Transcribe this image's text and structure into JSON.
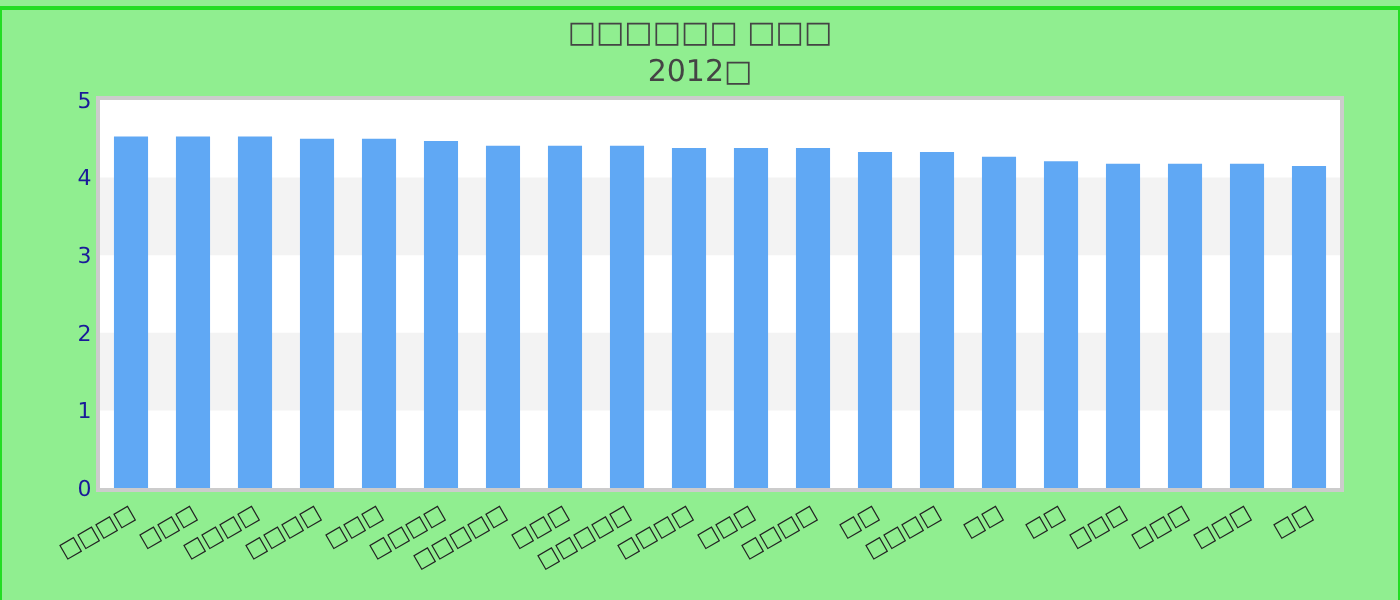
{
  "chart_data": {
    "type": "bar",
    "title": "□□□□□□ □□□",
    "subtitle": "2012□",
    "categories": [
      "□□□□",
      "□□□",
      "□□□□",
      "□□□□",
      "□□□",
      "□□□□",
      "□□□□□",
      "□□□",
      "□□□□□",
      "□□□□",
      "□□□",
      "□□□□",
      "□□",
      "□□□□",
      "□□",
      "□□",
      "□□□",
      "□□□",
      "□□□",
      "□□"
    ],
    "values": [
      4.53,
      4.53,
      4.53,
      4.5,
      4.5,
      4.47,
      4.41,
      4.41,
      4.41,
      4.38,
      4.38,
      4.38,
      4.33,
      4.33,
      4.27,
      4.21,
      4.18,
      4.18,
      4.18,
      4.15
    ],
    "color": "#60a8f4",
    "ylim": [
      0,
      5
    ],
    "yticks": [
      0,
      1,
      2,
      3,
      4,
      5
    ],
    "bands": [
      {
        "axis": "y",
        "from": 1,
        "to": 2,
        "color": "#f3f3f3"
      },
      {
        "axis": "y",
        "from": 3,
        "to": 4,
        "color": "#f3f3f3"
      }
    ]
  }
}
